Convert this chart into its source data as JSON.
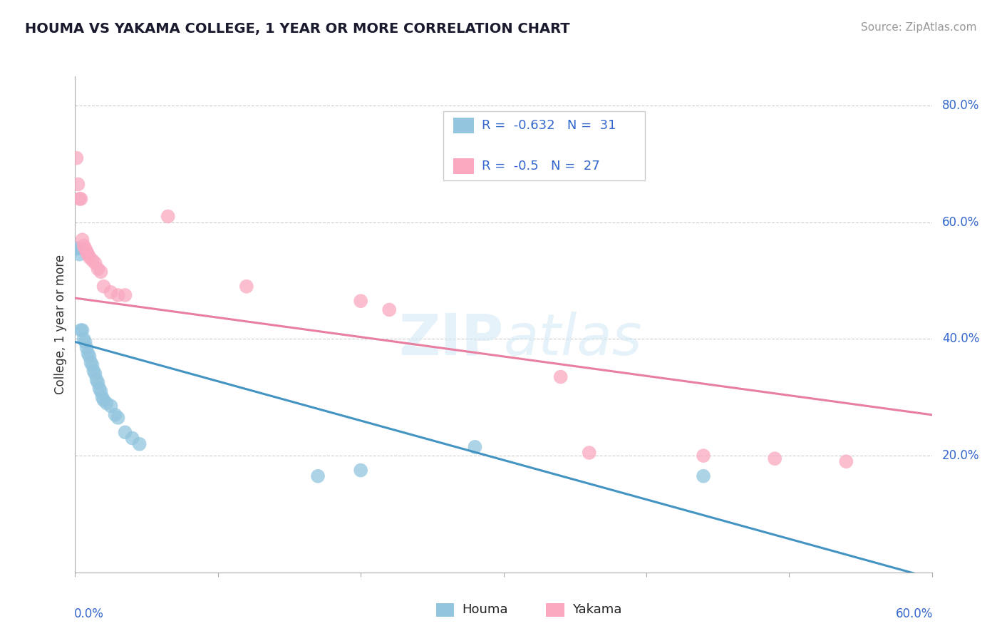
{
  "title": "HOUMA VS YAKAMA COLLEGE, 1 YEAR OR MORE CORRELATION CHART",
  "source": "Source: ZipAtlas.com",
  "ylabel": "College, 1 year or more",
  "right_yticks": [
    "80.0%",
    "60.0%",
    "40.0%",
    "20.0%"
  ],
  "right_ytick_vals": [
    0.8,
    0.6,
    0.4,
    0.2
  ],
  "houma_color": "#92C5DE",
  "yakama_color": "#F9A8C0",
  "houma_line_color": "#4393C3",
  "yakama_line_color": "#E87FA0",
  "houma_R": -0.632,
  "houma_N": 31,
  "yakama_R": -0.5,
  "yakama_N": 27,
  "legend_text_color": "#3366CC",
  "houma_x": [
    0.001,
    0.002,
    0.003,
    0.004,
    0.005,
    0.006,
    0.007,
    0.008,
    0.009,
    0.01,
    0.011,
    0.012,
    0.013,
    0.014,
    0.015,
    0.016,
    0.017,
    0.018,
    0.019,
    0.02,
    0.022,
    0.025,
    0.028,
    0.03,
    0.035,
    0.04,
    0.045,
    0.17,
    0.2,
    0.28,
    0.44
  ],
  "houma_y": [
    0.555,
    0.555,
    0.545,
    0.415,
    0.415,
    0.4,
    0.395,
    0.385,
    0.375,
    0.37,
    0.36,
    0.355,
    0.345,
    0.34,
    0.33,
    0.325,
    0.315,
    0.31,
    0.3,
    0.295,
    0.29,
    0.285,
    0.27,
    0.265,
    0.24,
    0.23,
    0.22,
    0.165,
    0.175,
    0.215,
    0.165
  ],
  "yakama_x": [
    0.001,
    0.002,
    0.003,
    0.004,
    0.005,
    0.006,
    0.007,
    0.008,
    0.009,
    0.01,
    0.012,
    0.014,
    0.016,
    0.018,
    0.02,
    0.025,
    0.03,
    0.035,
    0.065,
    0.12,
    0.2,
    0.22,
    0.34,
    0.36,
    0.44,
    0.49,
    0.54
  ],
  "yakama_y": [
    0.71,
    0.665,
    0.64,
    0.64,
    0.57,
    0.56,
    0.555,
    0.55,
    0.545,
    0.54,
    0.535,
    0.53,
    0.52,
    0.515,
    0.49,
    0.48,
    0.475,
    0.475,
    0.61,
    0.49,
    0.465,
    0.45,
    0.335,
    0.205,
    0.2,
    0.195,
    0.19
  ],
  "houma_line": [
    0.0,
    0.55,
    0.395,
    0.0
  ],
  "yakama_line": [
    0.0,
    0.47,
    0.6,
    0.27
  ],
  "xlim": [
    0.0,
    0.6
  ],
  "ylim": [
    0.0,
    0.85
  ],
  "background_color": "#FFFFFF",
  "grid_color": "#CCCCCC"
}
